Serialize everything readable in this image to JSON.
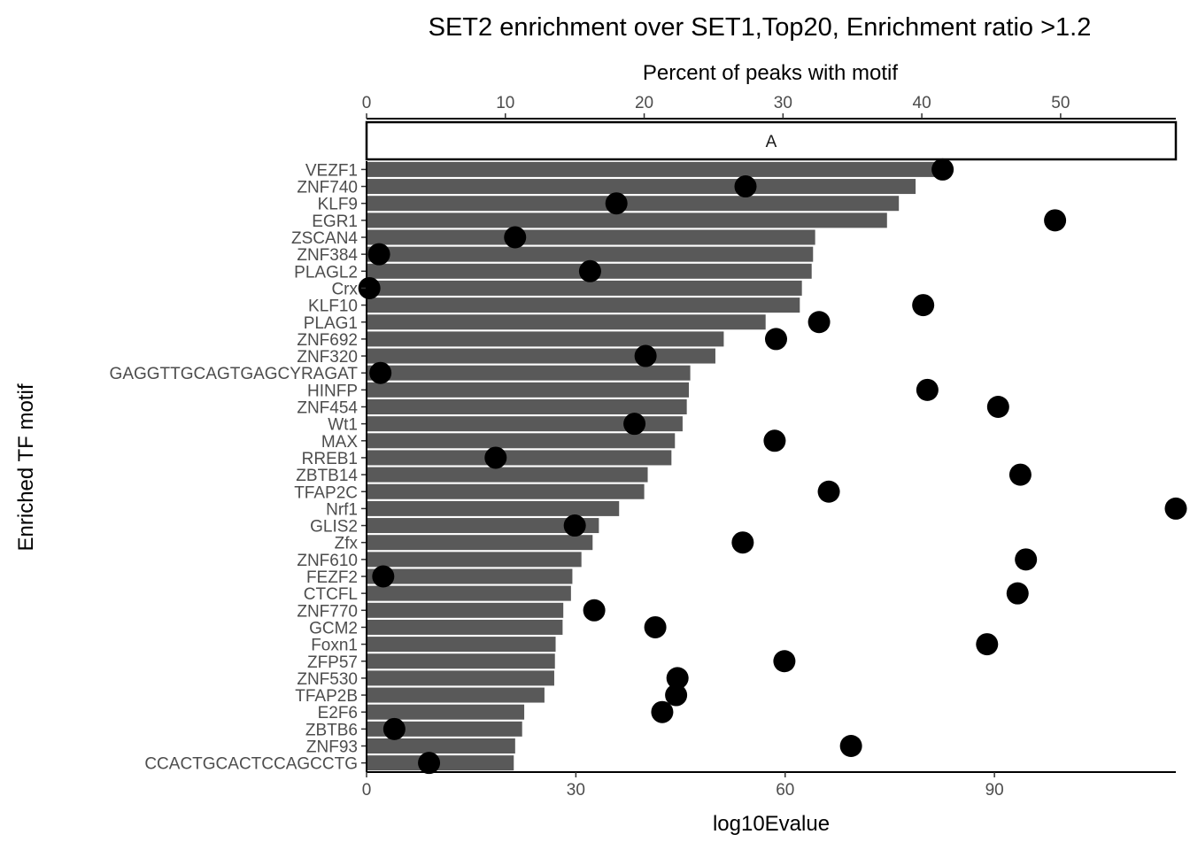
{
  "chart_data": {
    "type": "bar",
    "title": "SET2 enrichment over SET1,Top20, Enrichment ratio >1.2",
    "xlabel": "log10Evalue",
    "ylabel": "Enriched TF motif",
    "secondary_xlabel": "Percent of peaks with motif",
    "facet_label": "A",
    "xlim": [
      0,
      116
    ],
    "x_ticks": [
      0,
      30,
      60,
      90
    ],
    "secondary_xlim": [
      0,
      58.3
    ],
    "secondary_x_ticks": [
      0,
      10,
      20,
      30,
      40,
      50
    ],
    "bar_color": "#595959",
    "point_color": "#000000",
    "categories": [
      "VEZF1",
      "ZNF740",
      "KLF9",
      "EGR1",
      "ZSCAN4",
      "ZNF384",
      "PLAGL2",
      "Crx",
      "KLF10",
      "PLAG1",
      "ZNF692",
      "ZNF320",
      "GAGGTTGCAGTGAGCYRAGAT",
      "HINFP",
      "ZNF454",
      "Wt1",
      "MAX",
      "RREB1",
      "ZBTB14",
      "TFAP2C",
      "Nrf1",
      "GLIS2",
      "Zfx",
      "ZNF610",
      "FEZF2",
      "CTCFL",
      "ZNF770",
      "GCM2",
      "Foxn1",
      "ZFP57",
      "ZNF530",
      "TFAP2B",
      "E2F6",
      "ZBTB6",
      "ZNF93",
      "CCACTGCACTCCAGCCTG"
    ],
    "series": [
      {
        "name": "log10Evalue",
        "type": "bar",
        "values": [
          82.0,
          78.7,
          76.3,
          74.6,
          64.3,
          64.0,
          63.8,
          62.4,
          62.1,
          57.2,
          51.2,
          50.0,
          46.4,
          46.2,
          45.9,
          45.3,
          44.2,
          43.7,
          40.3,
          39.8,
          36.2,
          33.3,
          32.4,
          30.8,
          29.5,
          29.3,
          28.2,
          28.1,
          27.1,
          27.0,
          26.9,
          25.5,
          22.6,
          22.3,
          21.3,
          21.1
        ]
      },
      {
        "name": "Percent of peaks with motif",
        "type": "scatter",
        "values": [
          41.5,
          27.3,
          18.0,
          49.6,
          10.7,
          0.9,
          16.1,
          0.2,
          40.1,
          32.6,
          29.5,
          20.1,
          1.0,
          40.4,
          45.5,
          19.3,
          29.4,
          9.3,
          47.1,
          33.3,
          58.3,
          15.0,
          27.1,
          47.5,
          1.2,
          46.9,
          16.4,
          20.8,
          44.7,
          30.1,
          22.4,
          22.3,
          21.3,
          2.0,
          34.9,
          4.5
        ]
      }
    ]
  }
}
